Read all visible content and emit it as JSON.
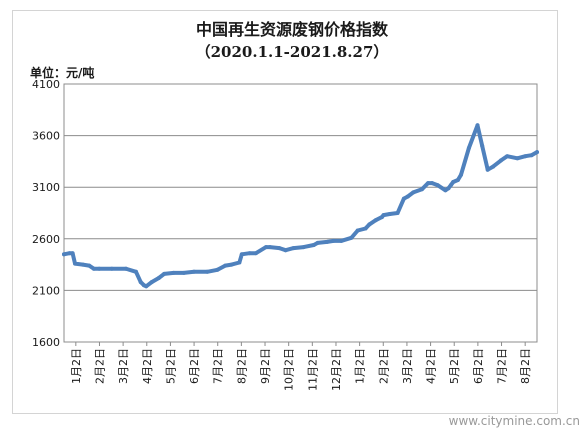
{
  "chart_data": {
    "type": "line",
    "title": "中国再生资源废钢价格指数",
    "subtitle": "（2020.1.1-2021.8.27）",
    "unit_label": "单位：元/吨",
    "ylim": [
      1600,
      4100
    ],
    "yticks": [
      1600,
      2100,
      2600,
      3100,
      3600,
      4100
    ],
    "grid": true,
    "legend": "none",
    "line_color": "#4f81bd",
    "x_tick_labels": [
      "1月2日",
      "2月2日",
      "3月2日",
      "4月2日",
      "5月2日",
      "6月2日",
      "7月2日",
      "8月2日",
      "9月2日",
      "10月2日",
      "11月2日",
      "12月2日",
      "1月2日",
      "2月2日",
      "3月2日",
      "4月2日",
      "5月2日",
      "6月2日",
      "7月2日",
      "8月2日"
    ],
    "series": [
      {
        "x": [
          "2020-01-01",
          "2020-01-08",
          "2020-01-12",
          "2020-01-15",
          "2020-01-25",
          "2020-02-02",
          "2020-02-08",
          "2020-02-15",
          "2020-03-02",
          "2020-03-20",
          "2020-04-02",
          "2020-04-08",
          "2020-04-12",
          "2020-04-15",
          "2020-04-22",
          "2020-05-01",
          "2020-05-08",
          "2020-05-20",
          "2020-06-02",
          "2020-06-15",
          "2020-07-02",
          "2020-07-15",
          "2020-07-25",
          "2020-08-02",
          "2020-08-12",
          "2020-08-15",
          "2020-08-25",
          "2020-09-02",
          "2020-09-15",
          "2020-09-20",
          "2020-10-02",
          "2020-10-10",
          "2020-10-20",
          "2020-11-02",
          "2020-11-15",
          "2020-11-20",
          "2020-12-02",
          "2020-12-10",
          "2020-12-20",
          "2021-01-02",
          "2021-01-10",
          "2021-01-20",
          "2021-01-25",
          "2021-02-02",
          "2021-02-10",
          "2021-02-12",
          "2021-02-20",
          "2021-03-02",
          "2021-03-10",
          "2021-03-15",
          "2021-03-22",
          "2021-04-02",
          "2021-04-10",
          "2021-04-15",
          "2021-04-22",
          "2021-05-02",
          "2021-05-06",
          "2021-05-09",
          "2021-05-12",
          "2021-05-18",
          "2021-05-22",
          "2021-06-01",
          "2021-06-12",
          "2021-06-18",
          "2021-06-25",
          "2021-07-02",
          "2021-07-12",
          "2021-07-20",
          "2021-08-02",
          "2021-08-12",
          "2021-08-20",
          "2021-08-27"
        ],
        "y": [
          2450,
          2460,
          2460,
          2360,
          2350,
          2340,
          2310,
          2310,
          2310,
          2310,
          2280,
          2180,
          2150,
          2140,
          2180,
          2220,
          2260,
          2270,
          2270,
          2280,
          2280,
          2300,
          2340,
          2350,
          2370,
          2450,
          2460,
          2460,
          2520,
          2520,
          2510,
          2490,
          2510,
          2520,
          2540,
          2560,
          2570,
          2580,
          2580,
          2610,
          2680,
          2700,
          2740,
          2780,
          2810,
          2830,
          2840,
          2850,
          2990,
          3010,
          3050,
          3080,
          3140,
          3140,
          3120,
          3070,
          3090,
          3120,
          3150,
          3170,
          3220,
          3480,
          3700,
          3500,
          3270,
          3300,
          3360,
          3400,
          3380,
          3400,
          3410,
          3440
        ]
      }
    ]
  },
  "watermark": "www.citymine.com.cn"
}
